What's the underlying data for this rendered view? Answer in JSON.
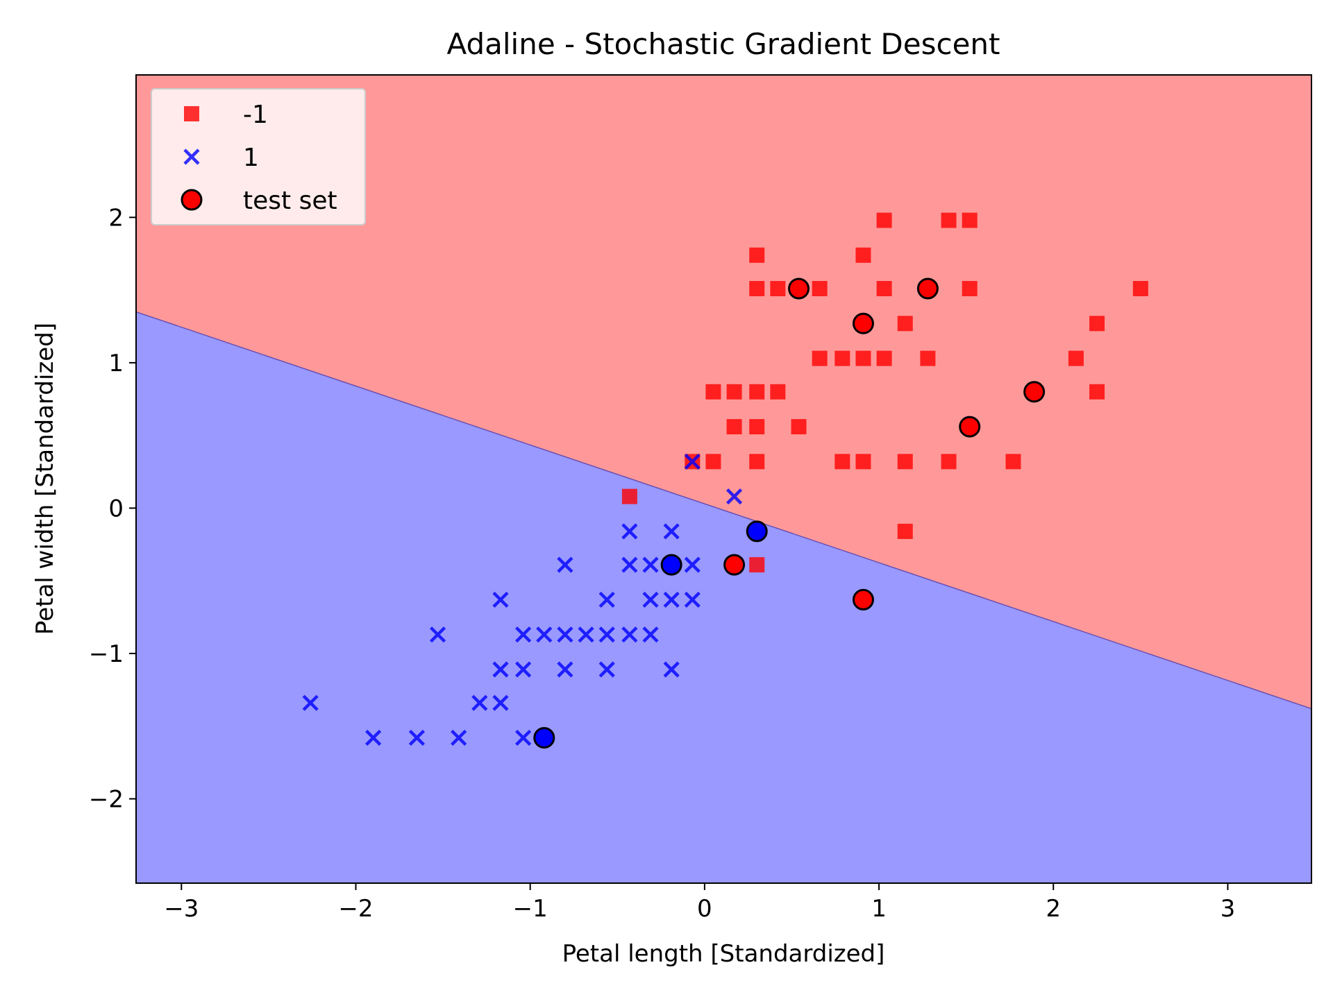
{
  "chart_data": {
    "type": "scatter",
    "title": "Adaline - Stochastic Gradient Descent",
    "xlabel": "Petal length [Standardized]",
    "ylabel": "Petal width [Standardized]",
    "xlim": [
      -3.26,
      3.48
    ],
    "ylim": [
      -2.58,
      2.98
    ],
    "xticks": [
      -3,
      -2,
      -1,
      0,
      1,
      2,
      3
    ],
    "yticks": [
      -2,
      -1,
      0,
      1,
      2
    ],
    "xtick_labels": [
      "−3",
      "−2",
      "−1",
      "0",
      "1",
      "2",
      "3"
    ],
    "ytick_labels": [
      "−2",
      "−1",
      "0",
      "1",
      "2"
    ],
    "grid": false,
    "legend_position": "top-left",
    "decision_boundary": {
      "line": [
        [
          -3.26,
          1.35
        ],
        [
          3.48,
          -1.38
        ]
      ],
      "region_above_color": "#ff9999",
      "region_below_color": "#9999ff",
      "boundary_color": "#6b4fb0"
    },
    "series": [
      {
        "name": "-1",
        "marker": "square",
        "color": "#ff0000",
        "points": [
          [
            1.03,
            1.98
          ],
          [
            1.4,
            1.98
          ],
          [
            1.52,
            1.98
          ],
          [
            0.3,
            1.74
          ],
          [
            0.91,
            1.74
          ],
          [
            0.3,
            1.51
          ],
          [
            0.42,
            1.51
          ],
          [
            0.54,
            1.51
          ],
          [
            0.66,
            1.51
          ],
          [
            1.03,
            1.51
          ],
          [
            1.28,
            1.51
          ],
          [
            1.52,
            1.51
          ],
          [
            2.5,
            1.51
          ],
          [
            0.91,
            1.27
          ],
          [
            1.15,
            1.27
          ],
          [
            2.25,
            1.27
          ],
          [
            0.66,
            1.03
          ],
          [
            0.79,
            1.03
          ],
          [
            0.91,
            1.03
          ],
          [
            1.03,
            1.03
          ],
          [
            1.28,
            1.03
          ],
          [
            2.13,
            1.03
          ],
          [
            0.05,
            0.8
          ],
          [
            0.17,
            0.8
          ],
          [
            0.3,
            0.8
          ],
          [
            0.42,
            0.8
          ],
          [
            1.89,
            0.8
          ],
          [
            2.25,
            0.8
          ],
          [
            0.17,
            0.56
          ],
          [
            0.3,
            0.56
          ],
          [
            0.54,
            0.56
          ],
          [
            1.52,
            0.56
          ],
          [
            0.05,
            0.32
          ],
          [
            -0.07,
            0.32
          ],
          [
            0.3,
            0.32
          ],
          [
            0.79,
            0.32
          ],
          [
            0.91,
            0.32
          ],
          [
            1.15,
            0.32
          ],
          [
            1.4,
            0.32
          ],
          [
            1.77,
            0.32
          ],
          [
            -0.43,
            0.08
          ],
          [
            1.15,
            -0.16
          ],
          [
            0.3,
            -0.39
          ],
          [
            0.17,
            -0.39
          ],
          [
            0.91,
            -0.63
          ]
        ]
      },
      {
        "name": "1",
        "marker": "x",
        "color": "#0000ff",
        "points": [
          [
            -0.07,
            0.32
          ],
          [
            0.17,
            0.08
          ],
          [
            -0.43,
            -0.16
          ],
          [
            -0.19,
            -0.16
          ],
          [
            -0.8,
            -0.39
          ],
          [
            -0.43,
            -0.39
          ],
          [
            -0.31,
            -0.39
          ],
          [
            -0.19,
            -0.39
          ],
          [
            -0.07,
            -0.39
          ],
          [
            -1.17,
            -0.63
          ],
          [
            -0.56,
            -0.63
          ],
          [
            -0.31,
            -0.63
          ],
          [
            -0.19,
            -0.63
          ],
          [
            -0.07,
            -0.63
          ],
          [
            -1.53,
            -0.87
          ],
          [
            -1.04,
            -0.87
          ],
          [
            -0.92,
            -0.87
          ],
          [
            -0.8,
            -0.87
          ],
          [
            -0.68,
            -0.87
          ],
          [
            -0.56,
            -0.87
          ],
          [
            -0.43,
            -0.87
          ],
          [
            -0.31,
            -0.87
          ],
          [
            -1.17,
            -1.11
          ],
          [
            -1.04,
            -1.11
          ],
          [
            -0.8,
            -1.11
          ],
          [
            -0.56,
            -1.11
          ],
          [
            -0.19,
            -1.11
          ],
          [
            -2.26,
            -1.34
          ],
          [
            -1.29,
            -1.34
          ],
          [
            -1.17,
            -1.34
          ],
          [
            -1.9,
            -1.58
          ],
          [
            -1.65,
            -1.58
          ],
          [
            -1.41,
            -1.58
          ],
          [
            -1.04,
            -1.58
          ],
          [
            -0.92,
            -1.58
          ]
        ]
      },
      {
        "name": "test set",
        "marker": "circle",
        "color": "#ff0000",
        "edgecolor": "#000000",
        "points": [
          {
            "x": 0.54,
            "y": 1.51,
            "color": "#ff0000"
          },
          {
            "x": 1.28,
            "y": 1.51,
            "color": "#ff0000"
          },
          {
            "x": 0.91,
            "y": 1.27,
            "color": "#ff0000"
          },
          {
            "x": 1.89,
            "y": 0.8,
            "color": "#ff0000"
          },
          {
            "x": 1.52,
            "y": 0.56,
            "color": "#ff0000"
          },
          {
            "x": 0.3,
            "y": -0.16,
            "color": "#0000ff"
          },
          {
            "x": -0.19,
            "y": -0.39,
            "color": "#0000ff"
          },
          {
            "x": 0.17,
            "y": -0.39,
            "color": "#ff0000"
          },
          {
            "x": 0.91,
            "y": -0.63,
            "color": "#ff0000"
          },
          {
            "x": -0.92,
            "y": -1.58,
            "color": "#0000ff"
          }
        ]
      }
    ],
    "legend": [
      {
        "label": "-1",
        "marker": "square",
        "color": "#ff0000"
      },
      {
        "label": "1",
        "marker": "x",
        "color": "#0000ff"
      },
      {
        "label": "test set",
        "marker": "circle",
        "color": "#ff0000"
      }
    ]
  }
}
